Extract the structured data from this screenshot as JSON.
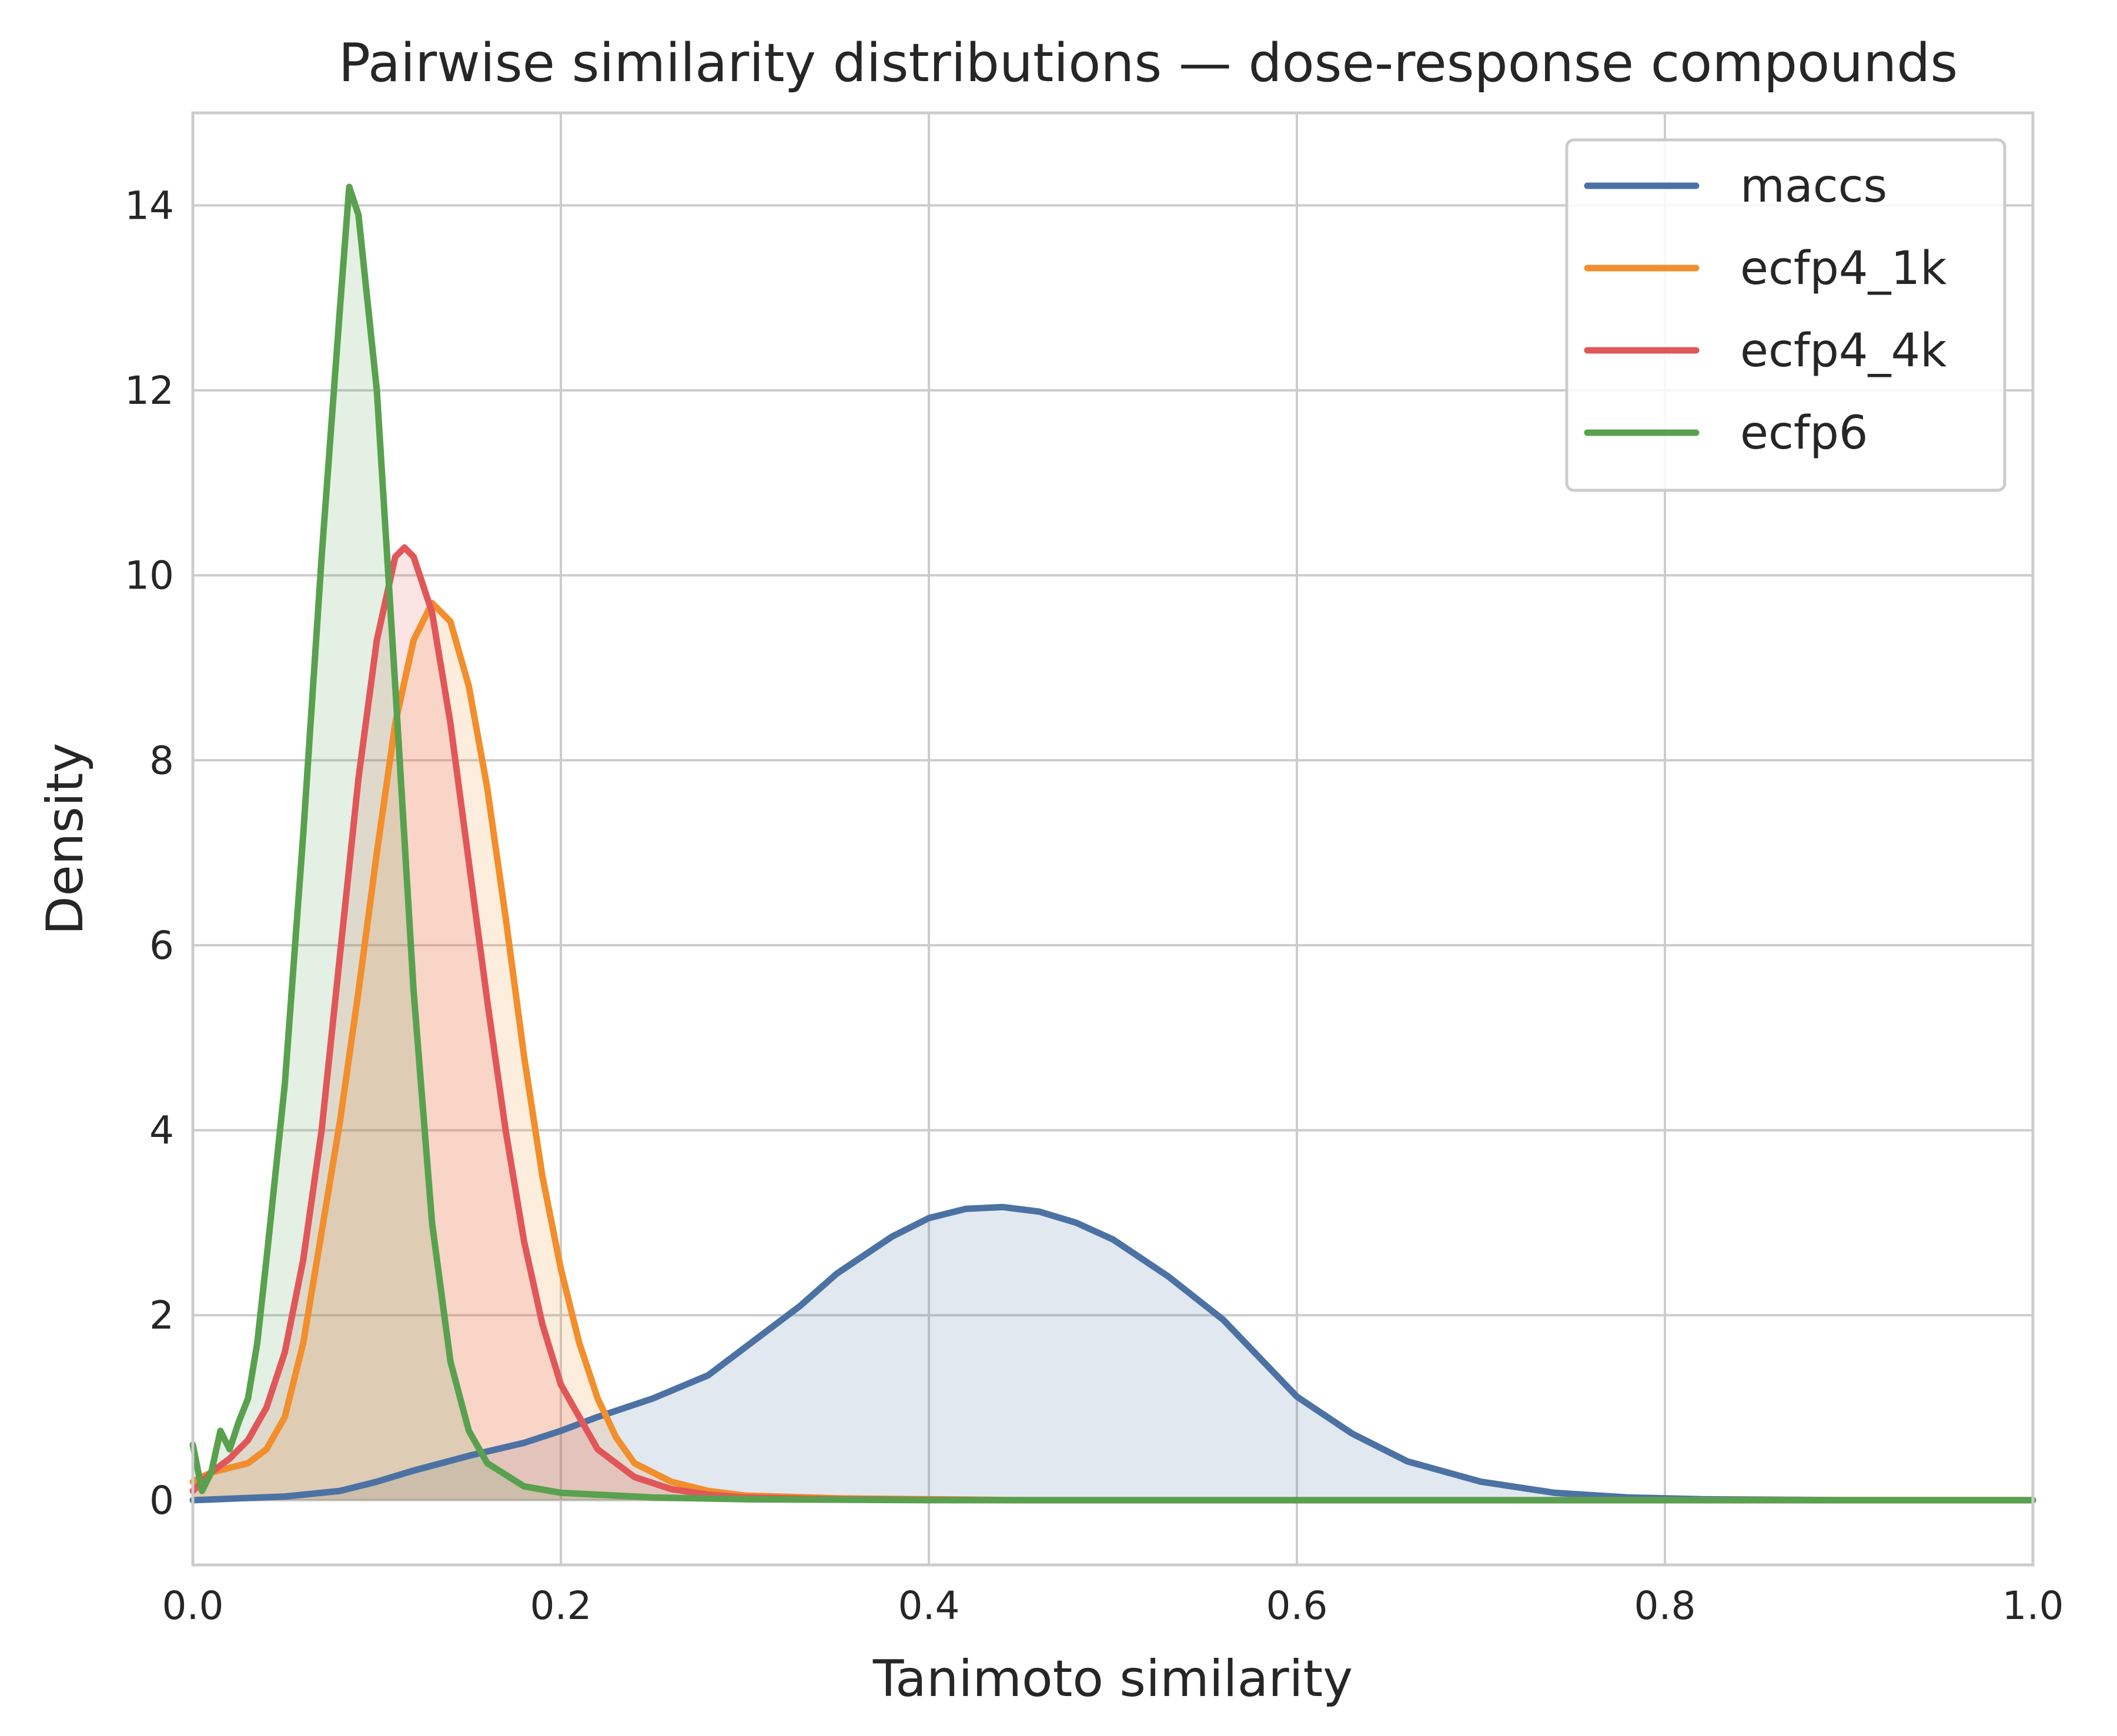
{
  "chart_data": {
    "type": "area",
    "title": "Pairwise similarity distributions — dose-response compounds",
    "xlabel": "Tanimoto similarity",
    "ylabel": "Density",
    "xlim": [
      0.0,
      1.0
    ],
    "ylim": [
      -0.7,
      15.0
    ],
    "xticks": [
      "0.0",
      "0.2",
      "0.4",
      "0.6",
      "0.8",
      "1.0"
    ],
    "yticks": [
      "0",
      "2",
      "4",
      "6",
      "8",
      "10",
      "12",
      "14"
    ],
    "grid": true,
    "legend_position": "top-right",
    "series": [
      {
        "name": "maccs",
        "color": "#4c72a4",
        "points": [
          [
            0.0,
            0.0
          ],
          [
            0.05,
            0.04
          ],
          [
            0.08,
            0.1
          ],
          [
            0.1,
            0.2
          ],
          [
            0.12,
            0.32
          ],
          [
            0.15,
            0.48
          ],
          [
            0.18,
            0.62
          ],
          [
            0.2,
            0.75
          ],
          [
            0.22,
            0.9
          ],
          [
            0.25,
            1.1
          ],
          [
            0.28,
            1.35
          ],
          [
            0.3,
            1.65
          ],
          [
            0.33,
            2.1
          ],
          [
            0.35,
            2.45
          ],
          [
            0.38,
            2.85
          ],
          [
            0.4,
            3.05
          ],
          [
            0.42,
            3.15
          ],
          [
            0.44,
            3.17
          ],
          [
            0.46,
            3.12
          ],
          [
            0.48,
            3.0
          ],
          [
            0.5,
            2.82
          ],
          [
            0.53,
            2.42
          ],
          [
            0.56,
            1.95
          ],
          [
            0.6,
            1.12
          ],
          [
            0.63,
            0.72
          ],
          [
            0.66,
            0.42
          ],
          [
            0.7,
            0.2
          ],
          [
            0.74,
            0.08
          ],
          [
            0.78,
            0.03
          ],
          [
            0.82,
            0.01
          ],
          [
            0.9,
            0.0
          ],
          [
            1.0,
            0.0
          ]
        ]
      },
      {
        "name": "ecfp4_1k",
        "color": "#f28e2b",
        "points": [
          [
            0.0,
            0.2
          ],
          [
            0.01,
            0.3
          ],
          [
            0.02,
            0.35
          ],
          [
            0.03,
            0.4
          ],
          [
            0.04,
            0.55
          ],
          [
            0.05,
            0.9
          ],
          [
            0.06,
            1.7
          ],
          [
            0.07,
            2.9
          ],
          [
            0.08,
            4.1
          ],
          [
            0.09,
            5.5
          ],
          [
            0.1,
            7.0
          ],
          [
            0.11,
            8.4
          ],
          [
            0.12,
            9.3
          ],
          [
            0.13,
            9.7
          ],
          [
            0.14,
            9.5
          ],
          [
            0.15,
            8.8
          ],
          [
            0.16,
            7.7
          ],
          [
            0.17,
            6.3
          ],
          [
            0.18,
            4.8
          ],
          [
            0.19,
            3.5
          ],
          [
            0.2,
            2.5
          ],
          [
            0.21,
            1.7
          ],
          [
            0.22,
            1.1
          ],
          [
            0.23,
            0.68
          ],
          [
            0.24,
            0.4
          ],
          [
            0.26,
            0.2
          ],
          [
            0.28,
            0.1
          ],
          [
            0.3,
            0.05
          ],
          [
            0.35,
            0.02
          ],
          [
            0.45,
            0.0
          ],
          [
            1.0,
            0.0
          ]
        ]
      },
      {
        "name": "ecfp4_4k",
        "color": "#e15759",
        "points": [
          [
            0.0,
            0.1
          ],
          [
            0.01,
            0.3
          ],
          [
            0.02,
            0.45
          ],
          [
            0.03,
            0.65
          ],
          [
            0.04,
            1.0
          ],
          [
            0.05,
            1.6
          ],
          [
            0.06,
            2.6
          ],
          [
            0.07,
            4.0
          ],
          [
            0.08,
            5.9
          ],
          [
            0.09,
            7.8
          ],
          [
            0.1,
            9.3
          ],
          [
            0.11,
            10.2
          ],
          [
            0.115,
            10.3
          ],
          [
            0.12,
            10.2
          ],
          [
            0.13,
            9.6
          ],
          [
            0.14,
            8.4
          ],
          [
            0.15,
            6.9
          ],
          [
            0.16,
            5.4
          ],
          [
            0.17,
            4.0
          ],
          [
            0.18,
            2.8
          ],
          [
            0.19,
            1.9
          ],
          [
            0.2,
            1.25
          ],
          [
            0.22,
            0.55
          ],
          [
            0.24,
            0.25
          ],
          [
            0.26,
            0.12
          ],
          [
            0.28,
            0.06
          ],
          [
            0.3,
            0.03
          ],
          [
            0.35,
            0.01
          ],
          [
            0.45,
            0.0
          ],
          [
            1.0,
            0.0
          ]
        ]
      },
      {
        "name": "ecfp6",
        "color": "#59a14f",
        "points": [
          [
            0.0,
            0.6
          ],
          [
            0.005,
            0.1
          ],
          [
            0.01,
            0.3
          ],
          [
            0.015,
            0.75
          ],
          [
            0.02,
            0.55
          ],
          [
            0.025,
            0.85
          ],
          [
            0.03,
            1.1
          ],
          [
            0.035,
            1.7
          ],
          [
            0.04,
            2.6
          ],
          [
            0.05,
            4.5
          ],
          [
            0.06,
            7.2
          ],
          [
            0.07,
            10.2
          ],
          [
            0.08,
            12.9
          ],
          [
            0.085,
            14.2
          ],
          [
            0.09,
            13.9
          ],
          [
            0.1,
            12.0
          ],
          [
            0.11,
            8.8
          ],
          [
            0.12,
            5.5
          ],
          [
            0.13,
            3.0
          ],
          [
            0.14,
            1.5
          ],
          [
            0.15,
            0.75
          ],
          [
            0.16,
            0.4
          ],
          [
            0.18,
            0.15
          ],
          [
            0.2,
            0.08
          ],
          [
            0.25,
            0.03
          ],
          [
            0.3,
            0.01
          ],
          [
            0.4,
            0.0
          ],
          [
            1.0,
            0.0
          ]
        ]
      }
    ]
  }
}
